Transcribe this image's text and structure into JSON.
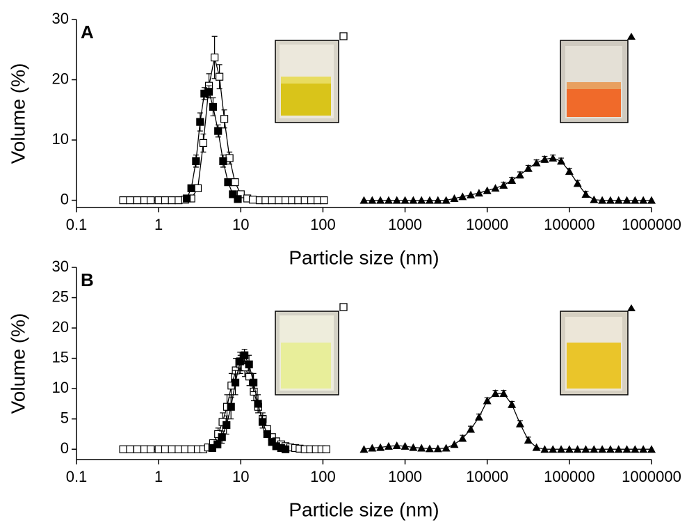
{
  "chart_data": [
    {
      "type": "line",
      "label": "A",
      "xlabel": "Particle size (nm)",
      "ylabel": "Volume (%)",
      "xscale": "log",
      "xlim": [
        0.1,
        1000000
      ],
      "ylim": [
        -1.2,
        30
      ],
      "xticks": [
        0.1,
        1,
        10,
        100,
        1000,
        10000,
        100000,
        1000000
      ],
      "yticks": [
        0,
        10,
        20,
        30
      ],
      "series": [
        {
          "marker": "open-square",
          "color": "#000000",
          "x": [
            0.37,
            0.45,
            0.55,
            0.67,
            0.8,
            1,
            1.2,
            1.45,
            1.75,
            2.1,
            2.5,
            3,
            3.5,
            4.1,
            4.8,
            5.5,
            6.3,
            7.3,
            8.5,
            10,
            12,
            14,
            17,
            20,
            24,
            29,
            35,
            42,
            50,
            60,
            72,
            86,
            103
          ],
          "values": [
            0,
            0,
            0,
            0,
            0,
            0,
            0,
            0,
            0,
            0.1,
            0.3,
            2,
            9.5,
            19,
            23.7,
            20.5,
            13.5,
            7,
            3,
            1,
            0.3,
            0.1,
            0,
            0,
            0,
            0,
            0,
            0,
            0,
            0,
            0,
            0,
            0
          ],
          "errors": [
            0,
            0,
            0,
            0,
            0,
            0,
            0,
            0,
            0,
            0,
            0,
            0.5,
            1.5,
            2,
            3.5,
            2,
            1.5,
            1,
            0.5,
            0,
            0,
            0,
            0,
            0,
            0,
            0,
            0,
            0,
            0,
            0,
            0,
            0,
            0
          ]
        },
        {
          "marker": "filled-square",
          "color": "#000000",
          "x": [
            2.2,
            2.5,
            2.85,
            3.2,
            3.6,
            4.1,
            4.6,
            5.3,
            6.1,
            7,
            8,
            9.2
          ],
          "values": [
            0.3,
            2,
            6.5,
            13,
            17.7,
            18,
            15.5,
            11.5,
            6.5,
            3,
            1,
            0.2
          ],
          "errors": [
            0,
            0.5,
            1,
            1.5,
            1,
            1,
            1.5,
            1,
            1,
            0.5,
            0,
            0
          ]
        },
        {
          "marker": "filled-triangle",
          "color": "#000000",
          "x": [
            316,
            398,
            501,
            631,
            794,
            1000,
            1259,
            1585,
            1995,
            2512,
            3162,
            3981,
            5012,
            6310,
            7943,
            10000,
            12589,
            15849,
            19953,
            25119,
            31623,
            39811,
            50119,
            63096,
            79433,
            100000,
            125893,
            158489,
            199526,
            251189,
            316228,
            398107,
            501187,
            630957,
            794328,
            1000000
          ],
          "values": [
            0,
            0,
            0,
            0,
            0,
            0,
            0,
            0,
            0,
            0,
            0,
            0.3,
            0.6,
            0.9,
            1.2,
            1.6,
            2,
            2.5,
            3.3,
            4.2,
            5.3,
            6.2,
            6.8,
            7,
            6.5,
            4.8,
            2.8,
            1,
            0.1,
            0,
            0,
            0,
            0,
            0,
            0,
            0
          ],
          "errors": [
            0,
            0,
            0,
            0,
            0,
            0,
            0,
            0,
            0,
            0,
            0,
            0,
            0,
            0,
            0,
            0,
            0,
            0.5,
            0.5,
            0.5,
            0.5,
            0.5,
            0.5,
            0.5,
            0.5,
            0.5,
            0.5,
            0.5,
            0,
            0,
            0,
            0,
            0,
            0,
            0,
            0
          ]
        }
      ]
    },
    {
      "type": "line",
      "label": "B",
      "xlabel": "Particle size (nm)",
      "ylabel": "Volume (%)",
      "xscale": "log",
      "xlim": [
        0.1,
        1000000
      ],
      "ylim": [
        -1.7,
        30
      ],
      "xticks": [
        0.1,
        1,
        10,
        100,
        1000,
        10000,
        100000,
        1000000
      ],
      "yticks": [
        0,
        5,
        10,
        15,
        20,
        25,
        30
      ],
      "series": [
        {
          "marker": "open-square",
          "color": "#000000",
          "x": [
            0.37,
            0.45,
            0.55,
            0.67,
            0.8,
            1,
            1.2,
            1.45,
            1.75,
            2.1,
            2.5,
            3,
            3.5,
            4,
            4.6,
            5.3,
            6,
            6.8,
            7.7,
            8.7,
            9.9,
            11.2,
            12.7,
            14.4,
            16.3,
            18.5,
            21,
            24,
            27,
            31,
            35,
            40,
            46,
            52,
            60,
            70,
            82,
            96,
            110
          ],
          "values": [
            0,
            0,
            0,
            0,
            0,
            0,
            0,
            0,
            0,
            0,
            0,
            0,
            0,
            0.3,
            1,
            2.5,
            4.5,
            7,
            10.5,
            13,
            14,
            13.5,
            12,
            9.5,
            7,
            5,
            3.3,
            2,
            1.3,
            0.8,
            0.5,
            0.3,
            0.2,
            0.1,
            0,
            0,
            0,
            0,
            0
          ],
          "errors": [
            0,
            0,
            0,
            0,
            0,
            0,
            0,
            0,
            0,
            0,
            0,
            0,
            0,
            0,
            0.5,
            1,
            1.5,
            2,
            2,
            2,
            1.5,
            1.5,
            1.5,
            1.5,
            1,
            1,
            0.5,
            0.5,
            0,
            0,
            0,
            0,
            0,
            0,
            0,
            0,
            0,
            0,
            0
          ]
        },
        {
          "marker": "filled-square",
          "color": "#000000",
          "x": [
            4.5,
            5.2,
            5.9,
            6.7,
            7.6,
            8.6,
            9.8,
            11.1,
            12.6,
            14.3,
            16.2,
            18.4,
            21,
            24,
            27,
            31,
            35
          ],
          "values": [
            0.2,
            0.8,
            2,
            4,
            7,
            11,
            14.5,
            15.5,
            14,
            11,
            7.5,
            4.5,
            2.5,
            1.2,
            0.5,
            0.2,
            0
          ],
          "errors": [
            0,
            0.5,
            1,
            1.5,
            2,
            2,
            1.5,
            1,
            1.5,
            1.5,
            1.5,
            1,
            0.5,
            0.5,
            0,
            0,
            0
          ]
        },
        {
          "marker": "filled-triangle",
          "color": "#000000",
          "x": [
            316,
            398,
            501,
            631,
            794,
            1000,
            1259,
            1585,
            1995,
            2512,
            3162,
            3981,
            5012,
            6310,
            7943,
            10000,
            12589,
            15849,
            19953,
            25119,
            31623,
            39811,
            50119,
            63096,
            79433,
            100000,
            125893,
            158489,
            199526,
            251189,
            316228,
            398107,
            501187,
            630957,
            794328,
            1000000
          ],
          "values": [
            0,
            0.2,
            0.3,
            0.5,
            0.6,
            0.5,
            0.3,
            0.2,
            0.1,
            0.1,
            0.2,
            0.8,
            1.8,
            3.3,
            5.3,
            8,
            9.2,
            9.2,
            7.4,
            4.2,
            1.5,
            0.3,
            0,
            0,
            0,
            0,
            0,
            0,
            0,
            0,
            0,
            0,
            0,
            0,
            0,
            0
          ],
          "errors": [
            0,
            0,
            0,
            0,
            0,
            0,
            0,
            0,
            0,
            0,
            0,
            0,
            0.5,
            0.5,
            0.5,
            0.5,
            0.5,
            0.5,
            0.5,
            0.5,
            0.5,
            0,
            0,
            0,
            0,
            0,
            0,
            0,
            0,
            0,
            0,
            0,
            0,
            0,
            0,
            0
          ]
        }
      ]
    }
  ]
}
